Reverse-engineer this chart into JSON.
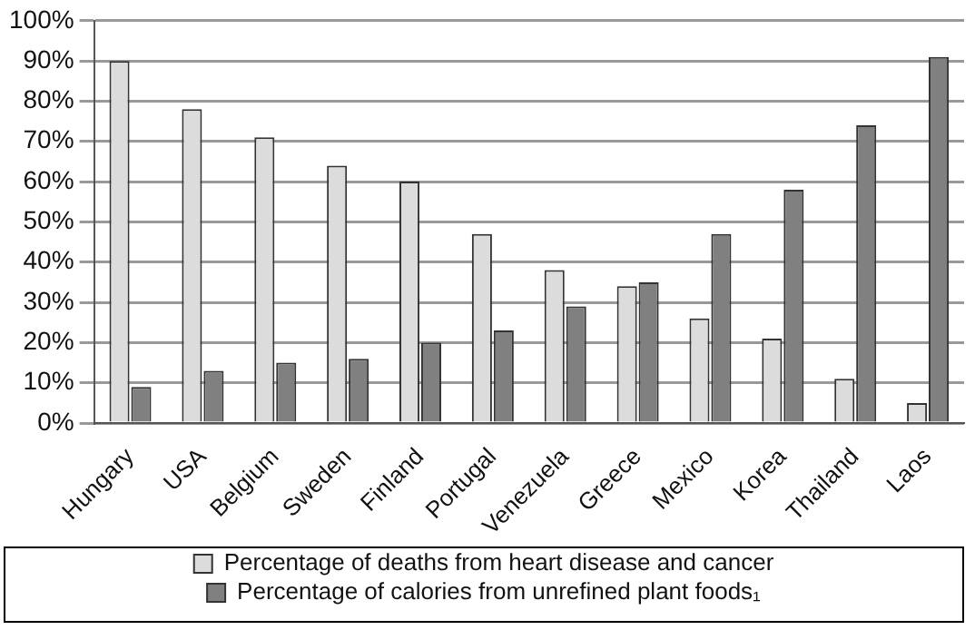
{
  "chart_data": {
    "type": "bar",
    "categories": [
      "Hungary",
      "USA",
      "Belgium",
      "Sweden",
      "Finland",
      "Portugal",
      "Venezuela",
      "Greece",
      "Mexico",
      "Korea",
      "Thailand",
      "Laos"
    ],
    "series": [
      {
        "name": "Percentage of deaths from heart disease and cancer",
        "color": "#dcdcdc",
        "values": [
          90,
          78,
          71,
          64,
          60,
          47,
          38,
          34,
          26,
          21,
          11,
          5
        ]
      },
      {
        "name": "Percentage of calories from unrefined plant foods₁",
        "color": "#808080",
        "values": [
          9,
          13,
          15,
          16,
          20,
          23,
          29,
          35,
          47,
          58,
          74,
          91
        ]
      }
    ],
    "ylim": [
      0,
      100
    ],
    "yticks": [
      {
        "value": 0,
        "label": "0%"
      },
      {
        "value": 10,
        "label": "10%"
      },
      {
        "value": 20,
        "label": "20%"
      },
      {
        "value": 30,
        "label": "30%"
      },
      {
        "value": 40,
        "label": "40%"
      },
      {
        "value": 50,
        "label": "50%"
      },
      {
        "value": 60,
        "label": "60%"
      },
      {
        "value": 70,
        "label": "70%"
      },
      {
        "value": 80,
        "label": "80%"
      },
      {
        "value": 90,
        "label": "90%"
      },
      {
        "value": 100,
        "label": "100%"
      }
    ],
    "grid": "y",
    "legend": "bottom"
  }
}
